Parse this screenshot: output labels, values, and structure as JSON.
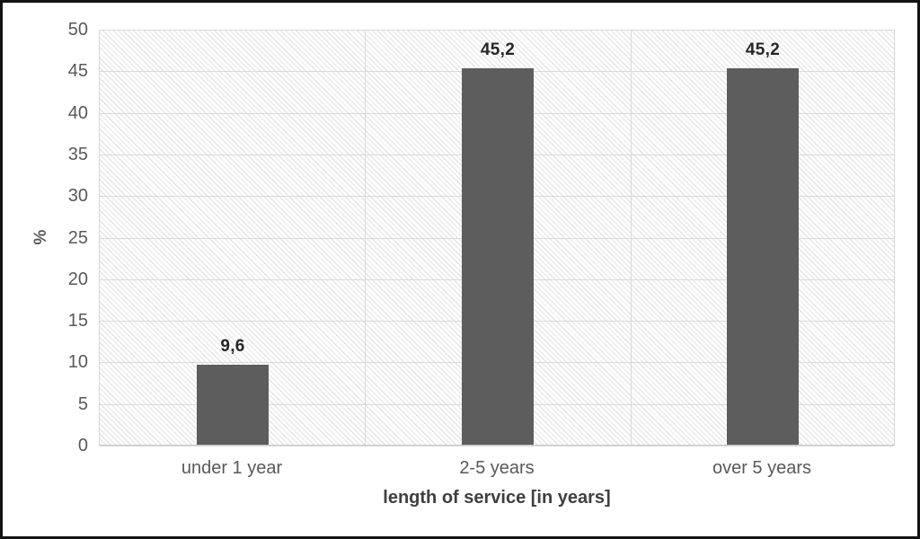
{
  "chart_data": {
    "type": "bar",
    "title": "",
    "categories": [
      "under 1 year",
      "2-5 years",
      "over 5 years"
    ],
    "values": [
      9.6,
      45.2,
      45.2
    ],
    "value_labels": [
      "9,6",
      "45,2",
      "45,2"
    ],
    "xlabel": "length of service [in years]",
    "ylabel": "%",
    "ylim": [
      0,
      50
    ],
    "yticks": [
      0,
      5,
      10,
      15,
      20,
      25,
      30,
      35,
      40,
      45,
      50
    ],
    "grid": "horizontal gridlines every 5, vertical category separators",
    "legend": "none",
    "style": {
      "bar_color": "#5d5d5d",
      "plot_hatch": "light diagonal pattern fill",
      "gridline_color": "#d9d9d9",
      "tick_label_color": "#595959",
      "value_label_color": "#262626",
      "frame_border_color": "#141414"
    }
  }
}
